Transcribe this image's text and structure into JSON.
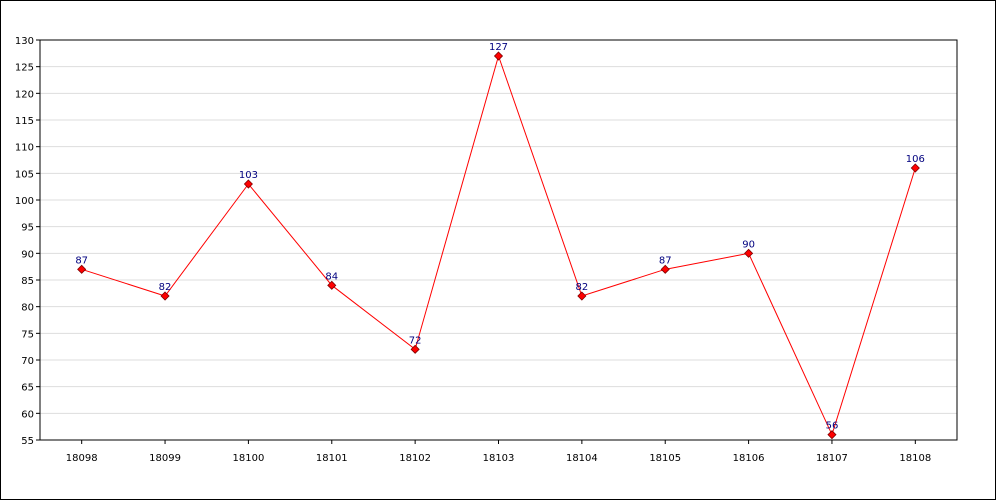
{
  "chart_data": {
    "type": "line",
    "title": "",
    "xlabel": "",
    "ylabel": "",
    "categories": [
      "18098",
      "18099",
      "18100",
      "18101",
      "18102",
      "18103",
      "18104",
      "18105",
      "18106",
      "18107",
      "18108"
    ],
    "series": [
      {
        "values": [
          87,
          82,
          103,
          84,
          72,
          127,
          82,
          87,
          90,
          56,
          106
        ]
      }
    ],
    "ylim": [
      55,
      130
    ],
    "yticks": [
      "55",
      "60",
      "65",
      "70",
      "75",
      "80",
      "85",
      "90",
      "95",
      "100",
      "105",
      "110",
      "115",
      "120",
      "125",
      "130"
    ],
    "grid": true,
    "legend": "none",
    "colors": {
      "line": "#ff0000",
      "marker": "#ff0000",
      "data_label": "#00007f",
      "grid": "#dddddd"
    }
  }
}
